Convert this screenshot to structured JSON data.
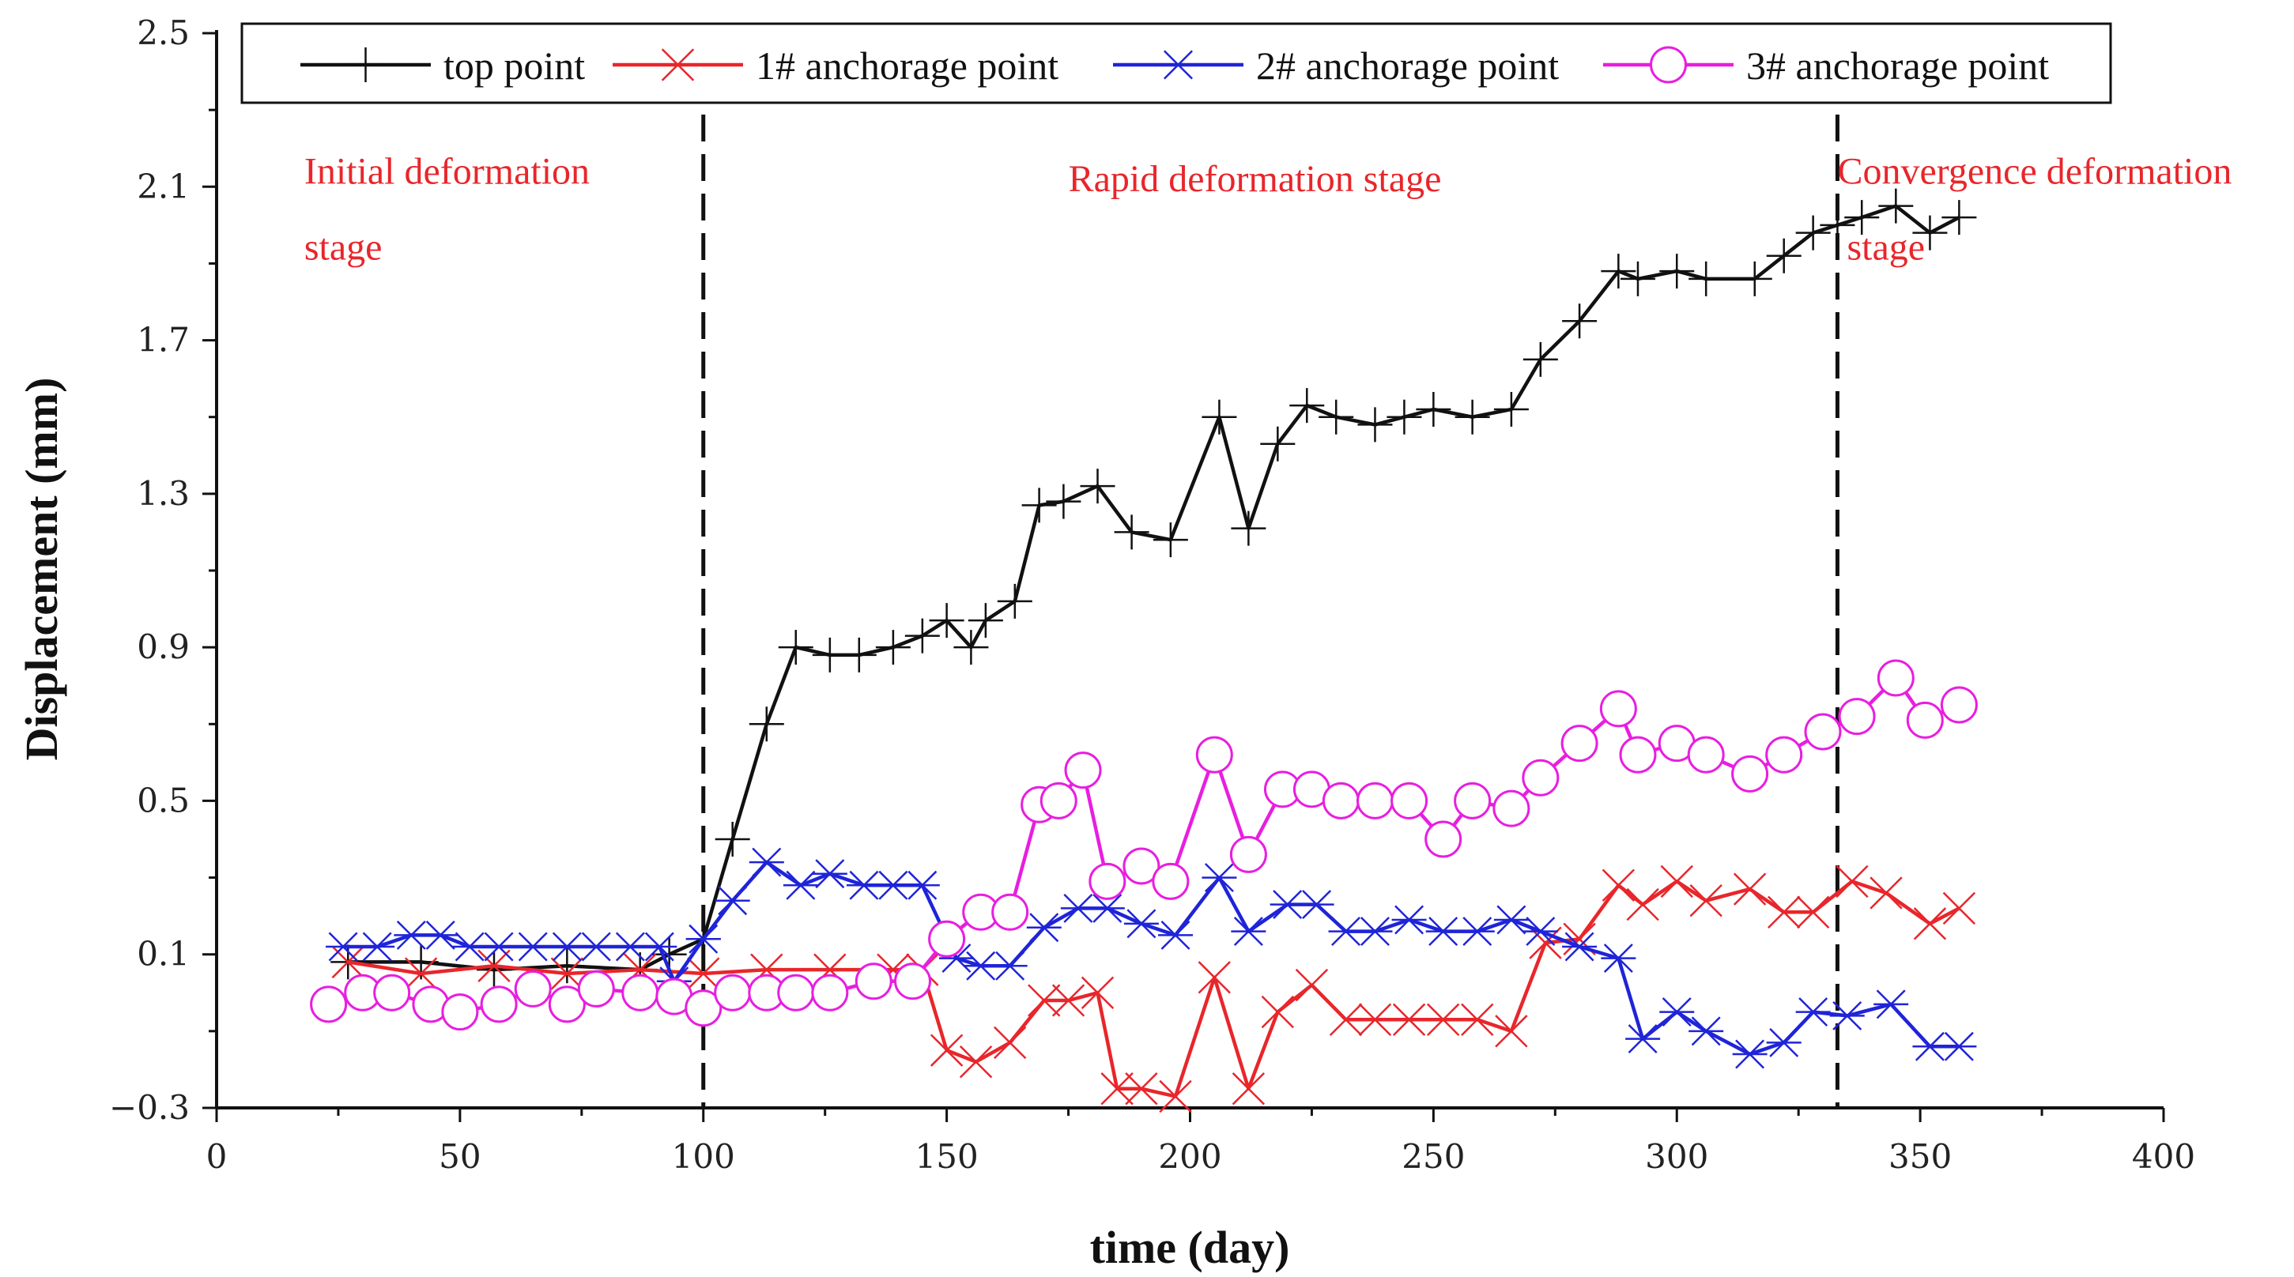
{
  "chart_data": {
    "type": "line",
    "title": "",
    "xlabel": "time (day)",
    "ylabel": "Displacement (mm)",
    "xlim": [
      0,
      400
    ],
    "ylim": [
      -0.3,
      2.5
    ],
    "xticks": [
      0,
      50,
      100,
      150,
      200,
      250,
      300,
      350,
      400
    ],
    "xtick_labels": [
      "0",
      "50",
      "100",
      "150",
      "200",
      "250",
      "300",
      "350",
      "400"
    ],
    "yticks": [
      -0.3,
      0.1,
      0.5,
      0.9,
      1.3,
      1.7,
      2.1,
      2.5
    ],
    "ytick_labels": [
      "−0.3",
      "0.1",
      "0.5",
      "0.9",
      "1.3",
      "1.7",
      "2.1",
      "2.5"
    ],
    "grid": false,
    "legend_position": "top",
    "stage_dividers": [
      100,
      333
    ],
    "annotations": [
      {
        "lines": [
          "Initial deformation",
          "stage"
        ],
        "x": 18,
        "y": 2.1
      },
      {
        "lines": [
          "Rapid deformation stage"
        ],
        "x": 175,
        "y": 2.08
      },
      {
        "lines": [
          "Convergence deformation",
          "stage"
        ],
        "x": 333,
        "y": 2.1
      }
    ],
    "series": [
      {
        "name": "top point",
        "color": "#111111",
        "marker": "plus",
        "x": [
          27,
          42,
          57,
          72,
          87,
          93,
          100,
          106,
          113,
          119,
          126,
          132,
          139,
          145,
          150,
          155,
          158,
          164,
          169,
          174,
          181,
          188,
          196,
          206,
          212,
          218,
          224,
          230,
          238,
          244,
          250,
          258,
          266,
          272,
          280,
          288,
          292,
          300,
          306,
          316,
          322,
          328,
          333,
          338,
          345,
          352,
          358
        ],
        "y": [
          0.08,
          0.08,
          0.06,
          0.07,
          0.06,
          0.1,
          0.14,
          0.4,
          0.7,
          0.9,
          0.88,
          0.88,
          0.9,
          0.93,
          0.97,
          0.9,
          0.97,
          1.02,
          1.27,
          1.28,
          1.32,
          1.2,
          1.18,
          1.5,
          1.21,
          1.43,
          1.53,
          1.5,
          1.48,
          1.5,
          1.52,
          1.5,
          1.52,
          1.65,
          1.75,
          1.88,
          1.86,
          1.88,
          1.86,
          1.86,
          1.92,
          1.98,
          2.0,
          2.02,
          2.05,
          1.98,
          2.02
        ]
      },
      {
        "name": "1# anchorage point",
        "color": "#e8262b",
        "marker": "x",
        "x": [
          27,
          42,
          57,
          72,
          87,
          100,
          113,
          126,
          139,
          145,
          150,
          156,
          163,
          170,
          175,
          181,
          185,
          190,
          197,
          205,
          212,
          218,
          225,
          232,
          238,
          245,
          252,
          259,
          266,
          273,
          280,
          288,
          293,
          300,
          306,
          315,
          322,
          328,
          336,
          343,
          352,
          358
        ],
        "y": [
          0.08,
          0.05,
          0.07,
          0.05,
          0.06,
          0.05,
          0.06,
          0.06,
          0.06,
          0.06,
          -0.15,
          -0.18,
          -0.13,
          -0.02,
          -0.02,
          0.0,
          -0.25,
          -0.25,
          -0.27,
          0.04,
          -0.25,
          -0.05,
          0.02,
          -0.07,
          -0.07,
          -0.07,
          -0.07,
          -0.07,
          -0.1,
          0.13,
          0.14,
          0.28,
          0.23,
          0.29,
          0.24,
          0.27,
          0.21,
          0.21,
          0.29,
          0.26,
          0.18,
          0.22
        ]
      },
      {
        "name": "2# anchorage point",
        "color": "#1f24d8",
        "marker": "asterisk",
        "x": [
          26,
          33,
          40,
          46,
          52,
          58,
          65,
          72,
          78,
          85,
          91,
          94,
          100,
          106,
          113,
          120,
          126,
          133,
          139,
          145,
          152,
          157,
          163,
          170,
          177,
          183,
          190,
          197,
          206,
          212,
          220,
          226,
          232,
          238,
          245,
          252,
          259,
          266,
          272,
          280,
          288,
          293,
          300,
          306,
          315,
          322,
          328,
          335,
          344,
          352,
          358
        ],
        "y": [
          0.12,
          0.12,
          0.15,
          0.15,
          0.12,
          0.12,
          0.12,
          0.12,
          0.12,
          0.12,
          0.12,
          0.03,
          0.14,
          0.24,
          0.34,
          0.28,
          0.31,
          0.28,
          0.28,
          0.28,
          0.09,
          0.07,
          0.07,
          0.17,
          0.22,
          0.22,
          0.18,
          0.15,
          0.3,
          0.16,
          0.23,
          0.23,
          0.16,
          0.16,
          0.19,
          0.16,
          0.16,
          0.19,
          0.16,
          0.12,
          0.09,
          -0.12,
          -0.05,
          -0.1,
          -0.16,
          -0.13,
          -0.05,
          -0.06,
          -0.03,
          -0.14,
          -0.14
        ]
      },
      {
        "name": "3# anchorage point",
        "color": "#e81ee0",
        "marker": "circle",
        "x": [
          23,
          30,
          36,
          44,
          50,
          58,
          65,
          72,
          78,
          87,
          94,
          100,
          106,
          113,
          119,
          126,
          135,
          143,
          150,
          157,
          163,
          169,
          173,
          178,
          183,
          190,
          196,
          205,
          212,
          219,
          225,
          231,
          238,
          245,
          252,
          258,
          266,
          272,
          280,
          288,
          292,
          300,
          306,
          315,
          322,
          330,
          337,
          345,
          351,
          358
        ],
        "y": [
          -0.03,
          0.0,
          0.0,
          -0.03,
          -0.05,
          -0.03,
          0.01,
          -0.03,
          0.01,
          0.0,
          -0.01,
          -0.04,
          0.0,
          0.0,
          0.0,
          0.0,
          0.03,
          0.03,
          0.14,
          0.21,
          0.21,
          0.49,
          0.5,
          0.58,
          0.29,
          0.33,
          0.29,
          0.62,
          0.36,
          0.53,
          0.53,
          0.5,
          0.5,
          0.5,
          0.4,
          0.5,
          0.48,
          0.56,
          0.65,
          0.74,
          0.62,
          0.65,
          0.62,
          0.57,
          0.62,
          0.68,
          0.72,
          0.82,
          0.71,
          0.75
        ]
      }
    ]
  }
}
